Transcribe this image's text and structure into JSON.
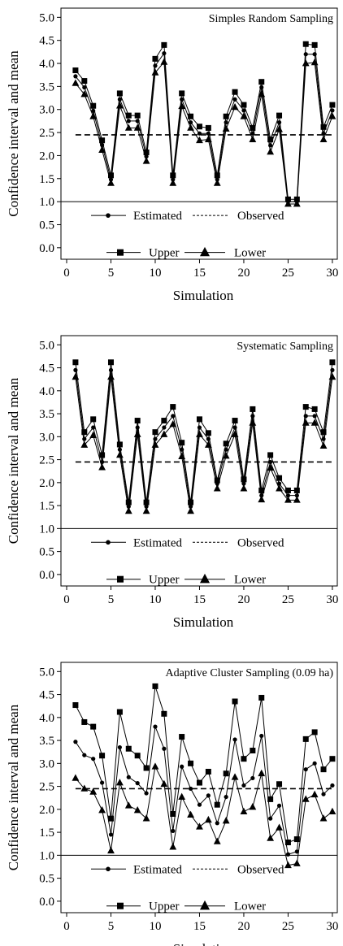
{
  "chart_data": [
    {
      "type": "line",
      "title": "Simples Random Sampling",
      "xlabel": "Simulation",
      "ylabel": "Confidence interval and mean",
      "xlim": [
        1,
        30
      ],
      "ylim": [
        0,
        5
      ],
      "xticks": [
        0,
        5,
        10,
        15,
        20,
        25,
        30
      ],
      "yticks": [
        "0.0",
        "0.5",
        "1.0",
        "1.5",
        "2.0",
        "2.5",
        "3.0",
        "3.5",
        "4.0",
        "4.5",
        "5.0"
      ],
      "reference_lines": [
        {
          "name": "Observed",
          "y": 2.45,
          "style": "dashed"
        },
        {
          "y": 1.0,
          "style": "solid"
        }
      ],
      "legend": [
        "Estimated",
        "Observed",
        "Upper",
        "Lower"
      ],
      "legend_position": "bottom-inside",
      "grid": false,
      "x": [
        1,
        2,
        3,
        4,
        5,
        6,
        7,
        8,
        9,
        10,
        11,
        12,
        13,
        14,
        15,
        16,
        17,
        18,
        19,
        20,
        21,
        22,
        23,
        24,
        25,
        26,
        27,
        28,
        29,
        30
      ],
      "series": [
        {
          "name": "Estimated",
          "marker": "circle",
          "values": [
            3.72,
            3.48,
            2.97,
            2.23,
            1.48,
            3.22,
            2.75,
            2.75,
            1.98,
            3.95,
            4.22,
            1.48,
            3.22,
            2.72,
            2.48,
            2.48,
            1.48,
            2.72,
            3.22,
            2.98,
            2.48,
            3.48,
            2.22,
            2.72,
            1.0,
            1.0,
            4.2,
            4.2,
            2.48,
            2.98
          ]
        },
        {
          "name": "Upper",
          "marker": "square",
          "values": [
            3.85,
            3.62,
            3.08,
            2.33,
            1.57,
            3.35,
            2.87,
            2.87,
            2.07,
            4.1,
            4.4,
            1.57,
            3.35,
            2.85,
            2.63,
            2.6,
            1.57,
            2.85,
            3.38,
            3.1,
            2.6,
            3.6,
            2.35,
            2.87,
            1.05,
            1.05,
            4.42,
            4.4,
            2.62,
            3.1
          ]
        },
        {
          "name": "Lower",
          "marker": "triangle",
          "values": [
            3.57,
            3.33,
            2.85,
            2.12,
            1.4,
            3.08,
            2.6,
            2.6,
            1.88,
            3.8,
            4.03,
            1.4,
            3.07,
            2.6,
            2.33,
            2.35,
            1.4,
            2.58,
            3.05,
            2.85,
            2.35,
            3.33,
            2.08,
            2.57,
            0.95,
            0.95,
            4.0,
            4.02,
            2.35,
            2.85
          ]
        }
      ]
    },
    {
      "type": "line",
      "title": "Systematic Sampling",
      "xlabel": "Simulation",
      "ylabel": "Confidence interval and mean",
      "xlim": [
        1,
        30
      ],
      "ylim": [
        0,
        5
      ],
      "xticks": [
        0,
        5,
        10,
        15,
        20,
        25,
        30
      ],
      "yticks": [
        "0.0",
        "0.5",
        "1.0",
        "1.5",
        "2.0",
        "2.5",
        "3.0",
        "3.5",
        "4.0",
        "4.5",
        "5.0"
      ],
      "reference_lines": [
        {
          "name": "Observed",
          "y": 2.45,
          "style": "dashed"
        },
        {
          "y": 1.0,
          "style": "solid"
        }
      ],
      "legend": [
        "Estimated",
        "Observed",
        "Upper",
        "Lower"
      ],
      "legend_position": "bottom-inside",
      "grid": false,
      "x": [
        1,
        2,
        3,
        4,
        5,
        6,
        7,
        8,
        9,
        10,
        11,
        12,
        13,
        14,
        15,
        16,
        17,
        18,
        19,
        20,
        21,
        22,
        23,
        24,
        25,
        26,
        27,
        28,
        29,
        30
      ],
      "series": [
        {
          "name": "Estimated",
          "marker": "circle",
          "values": [
            4.45,
            2.95,
            3.2,
            2.45,
            4.45,
            2.72,
            1.48,
            3.2,
            1.48,
            2.95,
            3.2,
            3.45,
            2.72,
            1.48,
            3.2,
            2.95,
            1.98,
            2.72,
            3.2,
            1.98,
            3.45,
            1.72,
            2.45,
            1.98,
            1.72,
            1.72,
            3.45,
            3.45,
            2.95,
            4.45
          ]
        },
        {
          "name": "Upper",
          "marker": "square",
          "values": [
            4.62,
            3.1,
            3.38,
            2.6,
            4.62,
            2.83,
            1.57,
            3.35,
            1.57,
            3.1,
            3.35,
            3.65,
            2.87,
            1.57,
            3.38,
            3.08,
            2.05,
            2.85,
            3.35,
            2.07,
            3.6,
            1.83,
            2.6,
            2.1,
            1.83,
            1.83,
            3.65,
            3.6,
            3.1,
            4.62
          ]
        },
        {
          "name": "Lower",
          "marker": "triangle",
          "values": [
            4.3,
            2.82,
            3.03,
            2.33,
            4.3,
            2.6,
            1.38,
            3.05,
            1.38,
            2.82,
            3.05,
            3.27,
            2.57,
            1.38,
            3.05,
            2.82,
            1.87,
            2.58,
            3.05,
            1.87,
            3.3,
            1.63,
            2.32,
            1.87,
            1.62,
            1.62,
            3.3,
            3.3,
            2.8,
            4.3
          ]
        }
      ]
    },
    {
      "type": "line",
      "title": "Adaptive Cluster Sampling (0.09 ha)",
      "xlabel": "Simulation",
      "ylabel": "Confidence interval and mean",
      "xlim": [
        1,
        30
      ],
      "ylim": [
        0,
        5
      ],
      "xticks": [
        0,
        5,
        10,
        15,
        20,
        25,
        30
      ],
      "yticks": [
        "0.0",
        "0.5",
        "1.0",
        "1.5",
        "2.0",
        "2.5",
        "3.0",
        "3.5",
        "4.0",
        "4.5",
        "5.0"
      ],
      "reference_lines": [
        {
          "name": "Observed",
          "y": 2.45,
          "style": "dashed"
        },
        {
          "y": 1.0,
          "style": "solid"
        }
      ],
      "legend": [
        "Estimated",
        "Observed",
        "Upper",
        "Lower"
      ],
      "legend_position": "bottom-inside",
      "grid": false,
      "x": [
        1,
        2,
        3,
        4,
        5,
        6,
        7,
        8,
        9,
        10,
        11,
        12,
        13,
        14,
        15,
        16,
        17,
        18,
        19,
        20,
        21,
        22,
        23,
        24,
        25,
        26,
        27,
        28,
        29,
        30
      ],
      "series": [
        {
          "name": "Estimated",
          "marker": "circle",
          "values": [
            3.47,
            3.18,
            3.1,
            2.58,
            1.45,
            3.35,
            2.7,
            2.57,
            2.35,
            3.8,
            3.32,
            1.53,
            2.93,
            2.45,
            2.1,
            2.3,
            1.7,
            2.27,
            3.52,
            2.52,
            2.68,
            3.6,
            1.8,
            2.08,
            1.02,
            1.08,
            2.87,
            3.0,
            2.33,
            2.52
          ]
        },
        {
          "name": "Upper",
          "marker": "square",
          "values": [
            4.27,
            3.9,
            3.8,
            3.17,
            1.8,
            4.12,
            3.32,
            3.17,
            2.9,
            4.68,
            4.08,
            1.9,
            3.58,
            3.0,
            2.58,
            2.82,
            2.1,
            2.78,
            4.35,
            3.1,
            3.28,
            4.43,
            2.22,
            2.55,
            1.28,
            1.35,
            3.53,
            3.68,
            2.87,
            3.1
          ]
        },
        {
          "name": "Lower",
          "marker": "triangle",
          "values": [
            2.68,
            2.45,
            2.38,
            1.98,
            1.1,
            2.58,
            2.08,
            1.98,
            1.8,
            2.93,
            2.55,
            1.18,
            2.27,
            1.88,
            1.62,
            1.77,
            1.3,
            1.75,
            2.7,
            1.95,
            2.05,
            2.78,
            1.37,
            1.6,
            0.78,
            0.82,
            2.22,
            2.32,
            1.8,
            1.95
          ]
        }
      ]
    }
  ]
}
